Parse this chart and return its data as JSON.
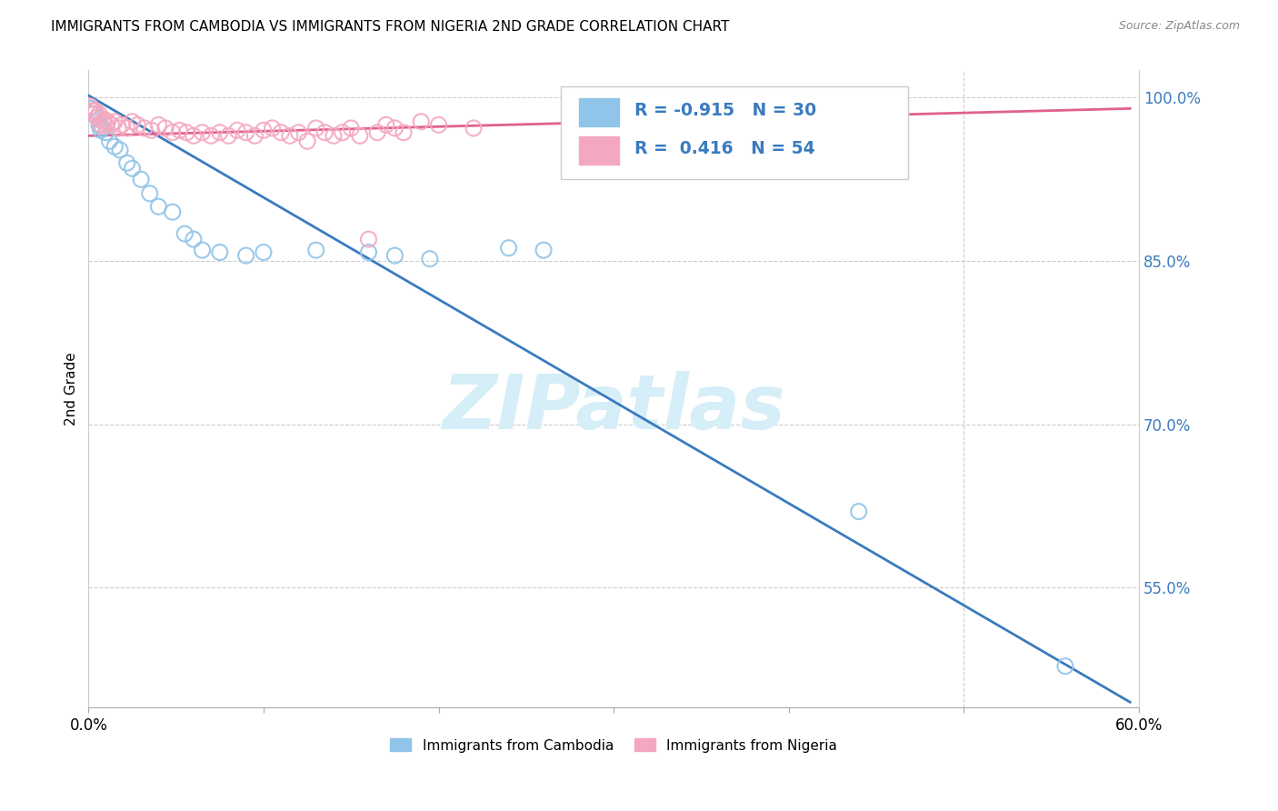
{
  "title": "IMMIGRANTS FROM CAMBODIA VS IMMIGRANTS FROM NIGERIA 2ND GRADE CORRELATION CHART",
  "source": "Source: ZipAtlas.com",
  "ylabel_left": "2nd Grade",
  "xlim": [
    0.0,
    0.6
  ],
  "ylim": [
    0.44,
    1.025
  ],
  "xticks": [
    0.0,
    0.1,
    0.2,
    0.3,
    0.4,
    0.5,
    0.6
  ],
  "yticks_right": [
    1.0,
    0.85,
    0.7,
    0.55
  ],
  "ytick_right_labels": [
    "100.0%",
    "85.0%",
    "70.0%",
    "55.0%"
  ],
  "R_cambodia": -0.915,
  "N_cambodia": 30,
  "R_nigeria": 0.416,
  "N_nigeria": 54,
  "color_cambodia": "#90c4e8",
  "color_nigeria": "#f4a8c0",
  "line_color_cambodia": "#3a7bbf",
  "line_color_nigeria": "#e06090",
  "watermark_color": "#d6eef8",
  "cambodia_points": [
    [
      0.001,
      0.99
    ],
    [
      0.002,
      0.985
    ],
    [
      0.003,
      0.988
    ],
    [
      0.006,
      0.975
    ],
    [
      0.007,
      0.97
    ],
    [
      0.008,
      0.972
    ],
    [
      0.01,
      0.968
    ],
    [
      0.012,
      0.96
    ],
    [
      0.015,
      0.955
    ],
    [
      0.018,
      0.952
    ],
    [
      0.022,
      0.94
    ],
    [
      0.025,
      0.935
    ],
    [
      0.03,
      0.925
    ],
    [
      0.035,
      0.912
    ],
    [
      0.04,
      0.9
    ],
    [
      0.048,
      0.895
    ],
    [
      0.055,
      0.875
    ],
    [
      0.06,
      0.87
    ],
    [
      0.065,
      0.86
    ],
    [
      0.075,
      0.858
    ],
    [
      0.09,
      0.855
    ],
    [
      0.1,
      0.858
    ],
    [
      0.13,
      0.86
    ],
    [
      0.16,
      0.858
    ],
    [
      0.175,
      0.855
    ],
    [
      0.195,
      0.852
    ],
    [
      0.24,
      0.862
    ],
    [
      0.26,
      0.86
    ],
    [
      0.44,
      0.62
    ],
    [
      0.558,
      0.478
    ]
  ],
  "nigeria_points": [
    [
      0.001,
      0.992
    ],
    [
      0.002,
      0.988
    ],
    [
      0.003,
      0.985
    ],
    [
      0.004,
      0.988
    ],
    [
      0.005,
      0.982
    ],
    [
      0.006,
      0.985
    ],
    [
      0.007,
      0.975
    ],
    [
      0.008,
      0.978
    ],
    [
      0.009,
      0.98
    ],
    [
      0.01,
      0.975
    ],
    [
      0.011,
      0.978
    ],
    [
      0.013,
      0.975
    ],
    [
      0.015,
      0.978
    ],
    [
      0.017,
      0.972
    ],
    [
      0.019,
      0.975
    ],
    [
      0.022,
      0.972
    ],
    [
      0.025,
      0.978
    ],
    [
      0.028,
      0.975
    ],
    [
      0.032,
      0.972
    ],
    [
      0.036,
      0.97
    ],
    [
      0.04,
      0.975
    ],
    [
      0.044,
      0.972
    ],
    [
      0.048,
      0.968
    ],
    [
      0.052,
      0.97
    ],
    [
      0.056,
      0.968
    ],
    [
      0.06,
      0.965
    ],
    [
      0.065,
      0.968
    ],
    [
      0.07,
      0.965
    ],
    [
      0.075,
      0.968
    ],
    [
      0.08,
      0.965
    ],
    [
      0.085,
      0.97
    ],
    [
      0.09,
      0.968
    ],
    [
      0.095,
      0.965
    ],
    [
      0.1,
      0.97
    ],
    [
      0.105,
      0.972
    ],
    [
      0.11,
      0.968
    ],
    [
      0.115,
      0.965
    ],
    [
      0.12,
      0.968
    ],
    [
      0.125,
      0.96
    ],
    [
      0.13,
      0.972
    ],
    [
      0.135,
      0.968
    ],
    [
      0.14,
      0.965
    ],
    [
      0.145,
      0.968
    ],
    [
      0.15,
      0.972
    ],
    [
      0.155,
      0.965
    ],
    [
      0.16,
      0.87
    ],
    [
      0.165,
      0.968
    ],
    [
      0.17,
      0.975
    ],
    [
      0.175,
      0.972
    ],
    [
      0.18,
      0.968
    ],
    [
      0.19,
      0.978
    ],
    [
      0.2,
      0.975
    ],
    [
      0.22,
      0.972
    ],
    [
      0.3,
      0.978
    ]
  ],
  "cam_line": [
    [
      0.0,
      1.002
    ],
    [
      0.595,
      0.445
    ]
  ],
  "nig_line": [
    [
      0.0,
      0.965
    ],
    [
      0.595,
      0.99
    ]
  ]
}
